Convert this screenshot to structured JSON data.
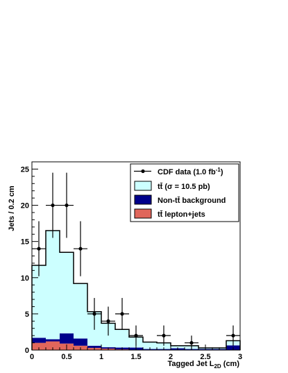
{
  "chart_data": {
    "type": "bar",
    "bin_edges": [
      0,
      0.2,
      0.4,
      0.6,
      0.8,
      1.0,
      1.2,
      1.4,
      1.6,
      1.8,
      2.0,
      2.2,
      2.4,
      2.6,
      2.8,
      3.0
    ],
    "series": [
      {
        "name": "tt̄ lepton+jets",
        "color": "#e0665b",
        "values": [
          1.0,
          1.2,
          0.9,
          0.6,
          0.3,
          0.2,
          0.1,
          0.05,
          0.05,
          0.05,
          0.05,
          0.05,
          0.05,
          0.05,
          0.05
        ]
      },
      {
        "name": "Non-tt̄ background",
        "color": "#00008b",
        "values": [
          0.7,
          0.3,
          1.4,
          1.0,
          0.3,
          0.2,
          0.25,
          0.3,
          0.1,
          0.1,
          0.2,
          0.1,
          0.1,
          0.1,
          0.6
        ]
      },
      {
        "name": "tt̄ (σ = 10.5 pb)",
        "color": "#ccffff",
        "values": [
          10.0,
          15.0,
          11.2,
          7.6,
          4.7,
          3.3,
          2.5,
          1.45,
          0.95,
          0.85,
          0.35,
          0.45,
          0.15,
          0.15,
          0.65
        ]
      }
    ],
    "stack_total": [
      11.7,
      16.5,
      13.5,
      9.2,
      5.3,
      3.7,
      2.85,
      1.8,
      1.1,
      1.0,
      0.6,
      0.6,
      0.3,
      0.3,
      1.3
    ],
    "data_points": {
      "name": "CDF data (1.0 fb⁻¹)",
      "x": [
        0.1,
        0.3,
        0.5,
        0.7,
        0.9,
        1.1,
        1.3,
        1.5,
        1.9,
        2.3,
        2.9
      ],
      "y": [
        14,
        20,
        20,
        14,
        5,
        4,
        5,
        2,
        2,
        1,
        2
      ],
      "err": [
        3.8,
        4.5,
        4.5,
        3.8,
        2.2,
        2.0,
        2.2,
        1.4,
        1.4,
        1.0,
        1.4
      ]
    },
    "xlabel_main": "Tagged Jet L",
    "xlabel_sub": "2D",
    "xlabel_unit": " (cm)",
    "ylabel": "Jets / 0.2 cm",
    "xlim": [
      0,
      3
    ],
    "ylim": [
      0,
      26
    ],
    "x_ticks": [
      0,
      0.5,
      1,
      1.5,
      2,
      2.5,
      3
    ],
    "x_tick_labels": [
      "0",
      "0.5",
      "1",
      "1.5",
      "2",
      "2.5",
      "3"
    ],
    "y_ticks": [
      0,
      5,
      10,
      15,
      20,
      25
    ],
    "y_tick_labels": [
      "0",
      "5",
      "10",
      "15",
      "20",
      "25"
    ],
    "legend_placement": "top-right",
    "legend": [
      {
        "kind": "marker",
        "label_main": "CDF data (1.0 fb",
        "label_sup": "-1",
        "label_tail": ")"
      },
      {
        "kind": "box",
        "color": "#ccffff",
        "label_main": "tt̄ (σ = 10.5 pb)"
      },
      {
        "kind": "box",
        "color": "#00008b",
        "label_main": "Non-tt̄ background"
      },
      {
        "kind": "box",
        "color": "#e0665b",
        "label_main": "tt̄ lepton+jets"
      }
    ]
  }
}
